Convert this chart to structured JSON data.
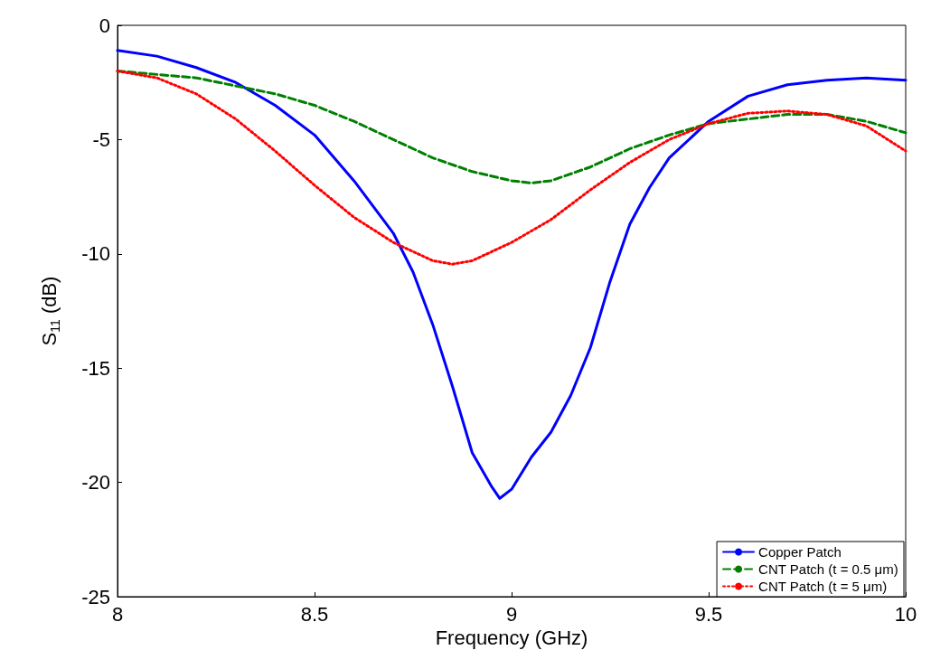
{
  "chart_data": {
    "type": "line",
    "xlabel": "Frequency (GHz)",
    "ylabel": "S$_{11}$ (dB)",
    "xlim": [
      8,
      10
    ],
    "ylim": [
      -25,
      0
    ],
    "xticks": [
      8,
      8.5,
      9,
      9.5,
      10
    ],
    "yticks": [
      -25,
      -20,
      -15,
      -10,
      -5,
      0
    ],
    "grid": false,
    "legend": "bottom right",
    "marker": "none",
    "x": [
      8,
      8.1,
      8.2,
      8.3,
      8.4,
      8.5,
      8.6,
      8.7,
      8.75,
      8.8,
      8.85,
      8.9,
      8.95,
      8.97,
      9,
      9.05,
      9.1,
      9.15,
      9.2,
      9.25,
      9.3,
      9.35,
      9.4,
      9.5,
      9.6,
      9.7,
      9.8,
      9.9,
      10
    ],
    "series": [
      {
        "name": "Copper Patch",
        "color": "#0000ff",
        "line_style": "solid",
        "values": [
          -1.1,
          -1.35,
          -1.85,
          -2.5,
          -3.5,
          -4.8,
          -6.8,
          -9.1,
          -10.8,
          -13.1,
          -15.8,
          -18.7,
          -20.2,
          -20.7,
          -20.3,
          -18.9,
          -17.8,
          -16.2,
          -14.1,
          -11.2,
          -8.7,
          -7.1,
          -5.8,
          -4.2,
          -3.1,
          -2.6,
          -2.4,
          -2.3,
          -2.4
        ]
      },
      {
        "name": "CNT Patch (t = 0.5 μm)",
        "color": "#008000",
        "line_style": "dashed",
        "x": [
          8,
          8.2,
          8.4,
          8.5,
          8.6,
          8.7,
          8.8,
          8.9,
          9,
          9.05,
          9.1,
          9.2,
          9.3,
          9.4,
          9.5,
          9.6,
          9.7,
          9.8,
          9.9,
          10
        ],
        "values": [
          -2,
          -2.3,
          -3,
          -3.5,
          -4.2,
          -5,
          -5.8,
          -6.4,
          -6.8,
          -6.9,
          -6.8,
          -6.2,
          -5.4,
          -4.8,
          -4.3,
          -4.1,
          -3.9,
          -3.9,
          -4.2,
          -4.7
        ]
      },
      {
        "name": "CNT Patch (t = 5 μm)",
        "color": "#ff0000",
        "line_style": "dotted",
        "x": [
          8,
          8.1,
          8.2,
          8.3,
          8.4,
          8.5,
          8.6,
          8.7,
          8.8,
          8.85,
          8.9,
          9,
          9.1,
          9.2,
          9.3,
          9.4,
          9.5,
          9.6,
          9.7,
          9.8,
          9.9,
          10
        ],
        "values": [
          -2,
          -2.3,
          -3,
          -4.1,
          -5.5,
          -7,
          -8.4,
          -9.5,
          -10.3,
          -10.45,
          -10.3,
          -9.5,
          -8.5,
          -7.2,
          -6,
          -5,
          -4.3,
          -3.85,
          -3.75,
          -3.9,
          -4.4,
          -5.5
        ]
      }
    ]
  }
}
